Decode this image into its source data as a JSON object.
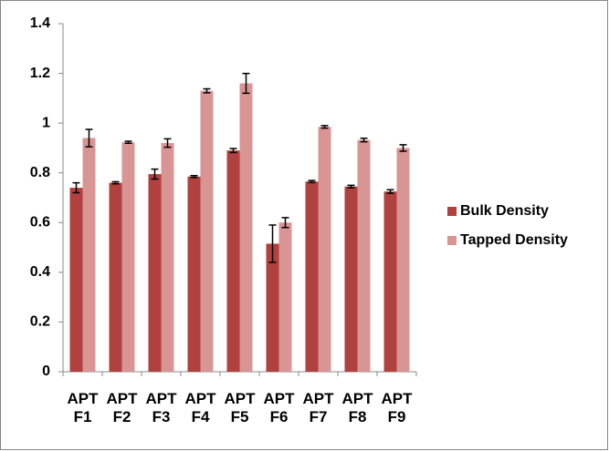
{
  "chart_data": {
    "type": "bar",
    "categories": [
      "APT F1",
      "APT F2",
      "APT F3",
      "APT F4",
      "APT F5",
      "APT F6",
      "APT F7",
      "APT F8",
      "APT F9"
    ],
    "series": [
      {
        "name": "Bulk Density",
        "color": "#b0413e",
        "values": [
          0.74,
          0.76,
          0.795,
          0.785,
          0.89,
          0.515,
          0.765,
          0.745,
          0.725
        ],
        "errors": [
          0.02,
          0.004,
          0.02,
          0.004,
          0.008,
          0.075,
          0.004,
          0.005,
          0.007
        ]
      },
      {
        "name": "Tapped Density",
        "color": "#d99594",
        "values": [
          0.94,
          0.923,
          0.92,
          1.13,
          1.16,
          0.6,
          0.985,
          0.932,
          0.9
        ],
        "errors": [
          0.035,
          0.004,
          0.017,
          0.008,
          0.04,
          0.02,
          0.005,
          0.007,
          0.013
        ]
      }
    ],
    "ylim": [
      0,
      1.4
    ],
    "yticks": [
      0,
      0.2,
      0.4,
      0.6,
      0.8,
      1,
      1.2,
      1.4
    ],
    "grid": false,
    "legend": "right"
  }
}
